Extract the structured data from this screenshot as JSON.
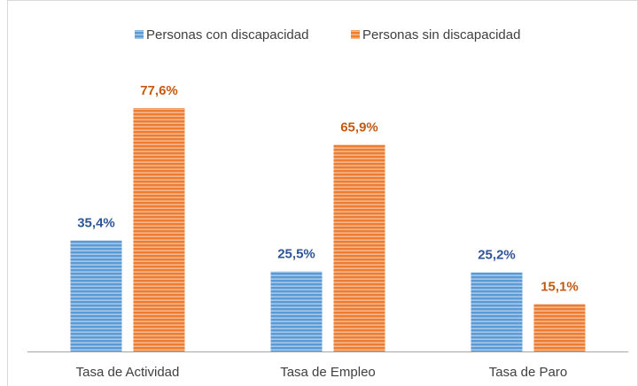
{
  "chart_data": {
    "type": "bar",
    "categories": [
      "Tasa de Actividad",
      "Tasa de Empleo",
      "Tasa de Paro"
    ],
    "series": [
      {
        "name": "Personas con discapacidad",
        "color": "#5b9bd5",
        "label_color": "#2f5597",
        "values": [
          35.4,
          25.5,
          25.2
        ],
        "value_labels": [
          "35,4%",
          "25,5%",
          "25,2%"
        ]
      },
      {
        "name": "Personas sin discapacidad",
        "color": "#ed7d31",
        "label_color": "#c55a11",
        "values": [
          77.6,
          65.9,
          15.1
        ],
        "value_labels": [
          "77,6%",
          "65,9%",
          "15,1%"
        ]
      }
    ],
    "legend": "top"
  }
}
